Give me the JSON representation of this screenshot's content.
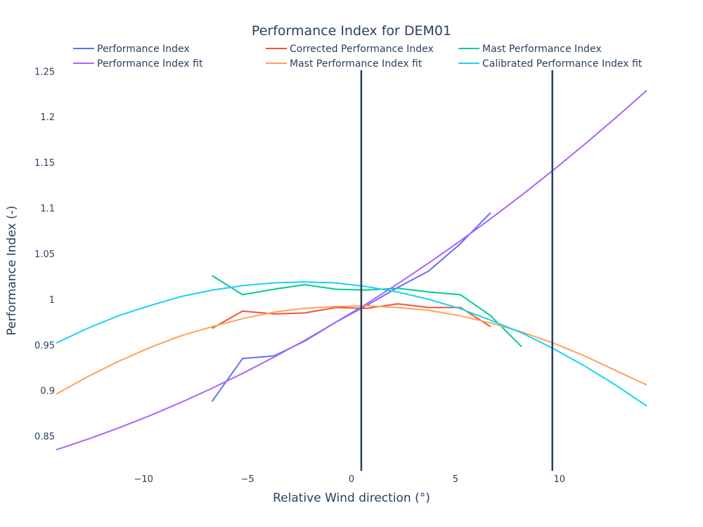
{
  "chart_data": {
    "type": "line",
    "title": "Performance Index for DEM01",
    "xlabel": "Relative Wind direction (°)",
    "ylabel": "Performance Index (-)",
    "xlim": [
      -14.2,
      14.2
    ],
    "ylim": [
      0.812,
      1.251
    ],
    "xticks": [
      -10,
      -5,
      0,
      5,
      10
    ],
    "xtick_labels": [
      "−10",
      "−5",
      "0",
      "5",
      "10"
    ],
    "yticks": [
      0.85,
      0.9,
      0.95,
      1,
      1.05,
      1.1,
      1.15,
      1.2,
      1.25
    ],
    "ytick_labels": [
      "0.85",
      "0.9",
      "0.95",
      "1",
      "1.05",
      "1.1",
      "1.15",
      "1.2",
      "1.25"
    ],
    "grid": false,
    "legend_position": "top",
    "vertical_lines": [
      0.47,
      9.66
    ],
    "vertical_line_color": "#2a3f5f",
    "series": [
      {
        "name": "Performance Index",
        "color": "#636efa",
        "x": [
          -6.71,
          -5.24,
          -3.72,
          -2.26,
          -0.74,
          0.71,
          2.23,
          3.72,
          5.24,
          6.69
        ],
        "y": [
          0.888,
          0.935,
          0.938,
          0.954,
          0.975,
          0.993,
          1.013,
          1.031,
          1.061,
          1.095
        ]
      },
      {
        "name": "Corrected Performance Index",
        "color": "#ef553b",
        "x": [
          -6.71,
          -5.24,
          -3.72,
          -2.26,
          -0.74,
          0.71,
          2.23,
          3.72,
          5.24,
          6.69
        ],
        "y": [
          0.968,
          0.987,
          0.984,
          0.985,
          0.991,
          0.99,
          0.995,
          0.991,
          0.991,
          0.97
        ]
      },
      {
        "name": "Mast Performance Index",
        "color": "#00cc96",
        "x": [
          -6.71,
          -5.24,
          -3.72,
          -2.26,
          -0.74,
          0.71,
          2.23,
          3.72,
          5.24,
          6.69,
          8.18
        ],
        "y": [
          1.026,
          1.005,
          1.011,
          1.016,
          1.011,
          1.01,
          1.012,
          1.008,
          1.005,
          0.982,
          0.948
        ]
      },
      {
        "name": "Performance Index fit",
        "color": "#ab63fa",
        "x": [
          -14.2,
          -12.7,
          -11.2,
          -9.7,
          -8.2,
          -6.7,
          -5.2,
          -3.7,
          -2.3,
          -0.8,
          0.7,
          2.2,
          3.7,
          5.2,
          6.7,
          8.2,
          9.7,
          11.2,
          12.7,
          14.2
        ],
        "y": [
          0.835,
          0.8465,
          0.8589,
          0.8724,
          0.8869,
          0.9025,
          0.9192,
          0.9369,
          0.9543,
          0.9742,
          0.9948,
          1.0166,
          1.0395,
          1.0634,
          1.0884,
          1.1144,
          1.1415,
          1.1697,
          1.1987,
          1.229
        ]
      },
      {
        "name": "Mast Performance Index fit",
        "color": "#ffa15a",
        "x": [
          -14.2,
          -12.7,
          -11.2,
          -9.7,
          -8.2,
          -6.7,
          -5.2,
          -3.7,
          -2.3,
          -0.8,
          0.7,
          2.2,
          3.7,
          5.2,
          6.7,
          8.2,
          9.7,
          11.2,
          12.7,
          14.2
        ],
        "y": [
          0.896,
          0.915,
          0.932,
          0.947,
          0.96,
          0.97,
          0.979,
          0.986,
          0.99,
          0.992,
          0.993,
          0.991,
          0.988,
          0.982,
          0.974,
          0.964,
          0.952,
          0.938,
          0.922,
          0.906
        ]
      },
      {
        "name": "Calibrated Performance Index fit",
        "color": "#19d3f3",
        "x": [
          -14.2,
          -12.7,
          -11.2,
          -9.7,
          -8.2,
          -6.7,
          -5.2,
          -3.7,
          -2.3,
          -0.8,
          0.7,
          2.2,
          3.7,
          5.2,
          6.7,
          8.2,
          9.7,
          11.2,
          12.7,
          14.2
        ],
        "y": [
          0.952,
          0.968,
          0.982,
          0.993,
          1.003,
          1.01,
          1.015,
          1.018,
          1.019,
          1.018,
          1.014,
          1.008,
          1.0,
          0.99,
          0.977,
          0.963,
          0.946,
          0.927,
          0.906,
          0.883
        ]
      }
    ]
  }
}
